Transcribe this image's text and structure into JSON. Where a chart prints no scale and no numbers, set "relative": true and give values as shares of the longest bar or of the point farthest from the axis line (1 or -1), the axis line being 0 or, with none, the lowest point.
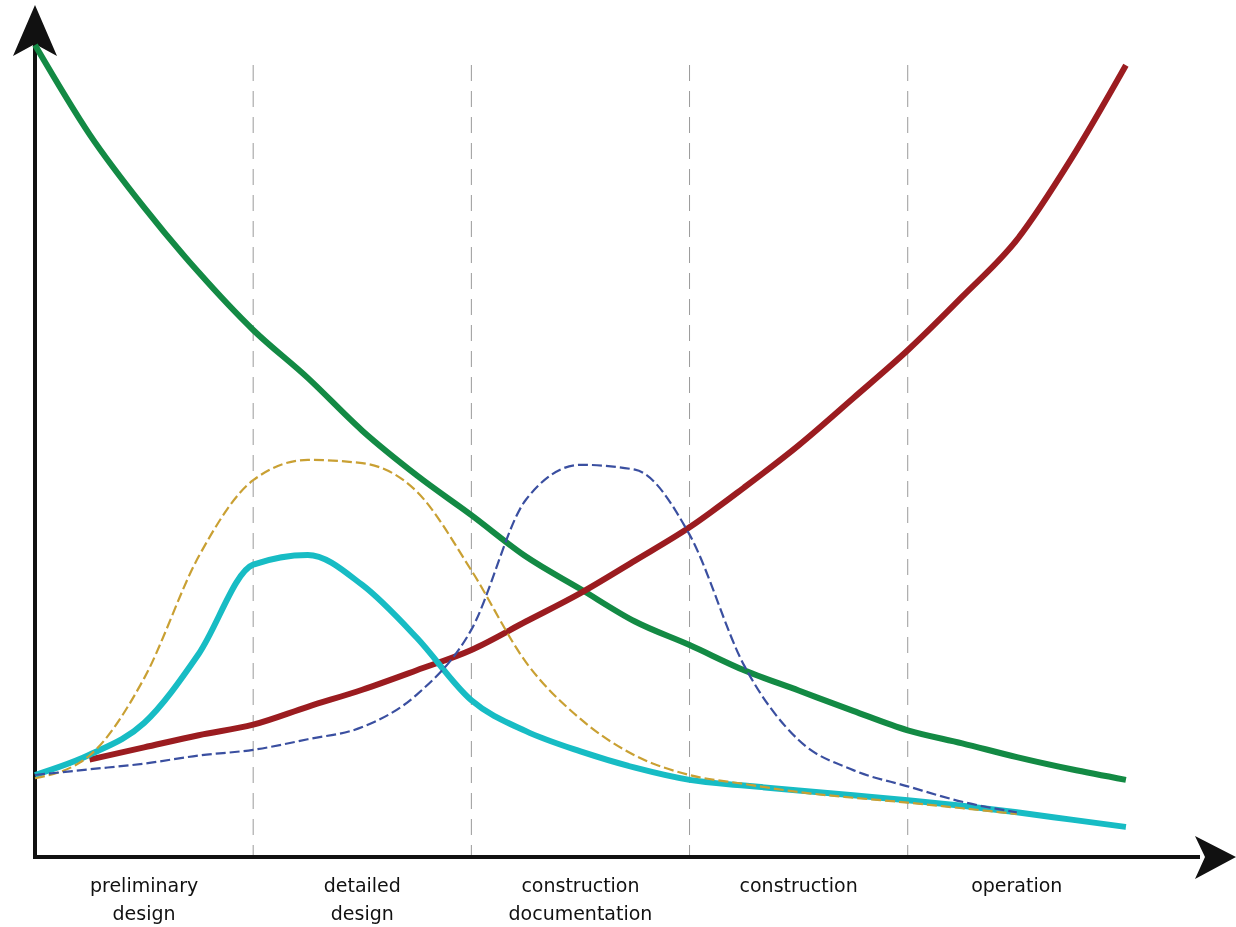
{
  "chart_data": {
    "type": "line",
    "relative": true,
    "grid": "x",
    "categories": [
      null,
      null,
      "preliminary design",
      null,
      null,
      null,
      "detailed design",
      null,
      null,
      null,
      "construction documentation",
      null,
      null,
      null,
      "construction",
      null,
      null,
      null,
      "operation",
      null,
      null,
      null,
      null
    ],
    "series": [
      {
        "color": "#138a44",
        "line_style": "solid",
        "values": [
          1.0,
          0.89,
          0.8,
          0.72,
          0.649,
          0.59,
          0.525,
          0.47,
          0.421,
          0.37,
          0.33,
          0.29,
          0.261,
          0.23,
          0.205,
          0.18,
          0.156,
          0.14,
          0.123,
          0.108,
          0.095,
          null,
          null
        ]
      },
      {
        "color": "#9b1c20",
        "line_style": "solid",
        "values": [
          null,
          0.12,
          0.135,
          0.15,
          0.163,
          0.185,
          0.206,
          0.23,
          0.255,
          0.29,
          0.325,
          0.365,
          0.406,
          0.455,
          0.507,
          0.565,
          0.624,
          0.69,
          0.76,
          0.86,
          0.975,
          null,
          null
        ]
      },
      {
        "color": "#c9a033",
        "line_style": "dashed",
        "values": [
          0.097,
          0.125,
          0.22,
          0.37,
          0.464,
          0.489,
          0.485,
          0.45,
          0.353,
          0.24,
          0.17,
          0.125,
          0.101,
          0.09,
          0.08,
          0.073,
          0.067,
          0.06,
          0.053,
          null,
          null,
          null,
          null
        ]
      },
      {
        "color": "#3a4fa0",
        "line_style": "dashed",
        "values": [
          0.101,
          0.108,
          0.115,
          0.125,
          0.132,
          0.145,
          0.16,
          0.2,
          0.28,
          0.44,
          0.483,
          0.477,
          0.397,
          0.236,
          0.144,
          0.107,
          0.087,
          0.068,
          0.055,
          null,
          null,
          null,
          null
        ]
      },
      {
        "color": "#17bcc4",
        "line_style": "solid",
        "values": [
          0.101,
          0.126,
          0.165,
          0.25,
          0.36,
          0.372,
          0.335,
          0.27,
          0.193,
          0.155,
          0.13,
          0.11,
          0.095,
          0.088,
          0.082,
          0.076,
          0.07,
          0.063,
          0.055,
          0.046,
          0.037,
          null,
          null
        ]
      }
    ]
  }
}
